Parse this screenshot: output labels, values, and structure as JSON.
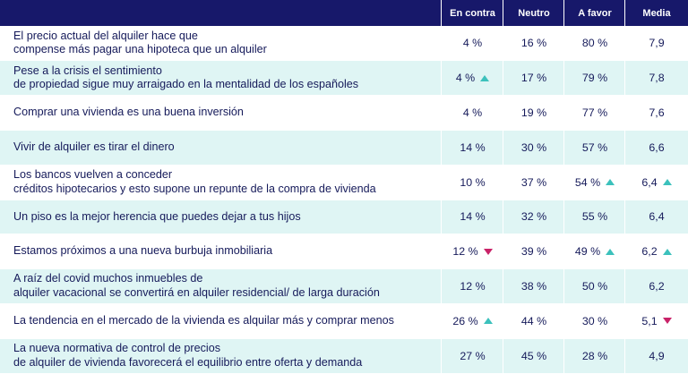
{
  "chart_data": {
    "type": "table",
    "columns": [
      "En contra",
      "Neutro",
      "A favor",
      "Media"
    ],
    "rows": [
      {
        "lines": [
          "El precio actual del alquiler hace que",
          "compense más pagar una hipoteca que un alquiler"
        ],
        "cells": [
          {
            "text": "4 %",
            "trend": ""
          },
          {
            "text": "16 %",
            "trend": ""
          },
          {
            "text": "80 %",
            "trend": ""
          },
          {
            "text": "7,9",
            "trend": ""
          }
        ]
      },
      {
        "lines": [
          "Pese a la crisis el sentimiento",
          "de propiedad sigue muy arraigado en la mentalidad de los españoles"
        ],
        "cells": [
          {
            "text": "4 %",
            "trend": "up"
          },
          {
            "text": "17 %",
            "trend": ""
          },
          {
            "text": "79 %",
            "trend": ""
          },
          {
            "text": "7,8",
            "trend": ""
          }
        ]
      },
      {
        "lines": [
          "Comprar una vivienda es una buena inversión"
        ],
        "cells": [
          {
            "text": "4 %",
            "trend": ""
          },
          {
            "text": "19 %",
            "trend": ""
          },
          {
            "text": "77 %",
            "trend": ""
          },
          {
            "text": "7,6",
            "trend": ""
          }
        ]
      },
      {
        "lines": [
          "Vivir de alquiler es tirar el dinero"
        ],
        "cells": [
          {
            "text": "14 %",
            "trend": ""
          },
          {
            "text": "30 %",
            "trend": ""
          },
          {
            "text": "57 %",
            "trend": ""
          },
          {
            "text": "6,6",
            "trend": ""
          }
        ]
      },
      {
        "lines": [
          "Los bancos vuelven a conceder",
          "créditos hipotecarios y esto supone un repunte de la compra de vivienda"
        ],
        "cells": [
          {
            "text": "10 %",
            "trend": ""
          },
          {
            "text": "37 %",
            "trend": ""
          },
          {
            "text": "54 %",
            "trend": "up"
          },
          {
            "text": "6,4",
            "trend": "up"
          }
        ]
      },
      {
        "lines": [
          "Un piso es la mejor herencia que puedes dejar a tus hijos"
        ],
        "cells": [
          {
            "text": "14 %",
            "trend": ""
          },
          {
            "text": "32 %",
            "trend": ""
          },
          {
            "text": "55 %",
            "trend": ""
          },
          {
            "text": "6,4",
            "trend": ""
          }
        ]
      },
      {
        "lines": [
          "Estamos próximos a una nueva burbuja inmobiliaria"
        ],
        "cells": [
          {
            "text": "12 %",
            "trend": "down"
          },
          {
            "text": "39 %",
            "trend": ""
          },
          {
            "text": "49 %",
            "trend": "up"
          },
          {
            "text": "6,2",
            "trend": "up"
          }
        ]
      },
      {
        "lines": [
          "A raíz del covid muchos inmuebles de",
          "alquiler vacacional se convertirá en alquiler residencial/ de larga duración"
        ],
        "cells": [
          {
            "text": "12 %",
            "trend": ""
          },
          {
            "text": "38 %",
            "trend": ""
          },
          {
            "text": "50 %",
            "trend": ""
          },
          {
            "text": "6,2",
            "trend": ""
          }
        ]
      },
      {
        "lines": [
          "La tendencia en el mercado de la vivienda es alquilar más y comprar menos"
        ],
        "cells": [
          {
            "text": "26 %",
            "trend": "up"
          },
          {
            "text": "44 %",
            "trend": ""
          },
          {
            "text": "30 %",
            "trend": ""
          },
          {
            "text": "5,1",
            "trend": "down"
          }
        ]
      },
      {
        "lines": [
          "La nueva normativa de control de precios",
          "de alquiler de vivienda favorecerá el equilibrio entre oferta y demanda"
        ],
        "cells": [
          {
            "text": "27 %",
            "trend": ""
          },
          {
            "text": "45 %",
            "trend": ""
          },
          {
            "text": "28 %",
            "trend": ""
          },
          {
            "text": "4,9",
            "trend": ""
          }
        ]
      }
    ]
  },
  "colors": {
    "header_bg": "#17186a",
    "alt_row_bg": "#dff5f4",
    "up": "#3cc1bc",
    "down": "#c92268",
    "text": "#151a5a"
  }
}
